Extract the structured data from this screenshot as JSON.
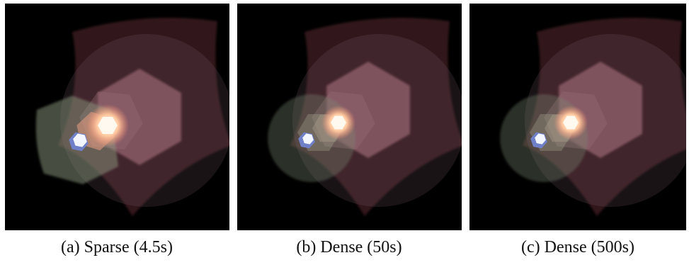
{
  "figure": {
    "panels": [
      {
        "caption": "(a) Sparse (4.5s)"
      },
      {
        "caption": "(b) Dense (50s)"
      },
      {
        "caption": "(c) Dense (500s)"
      }
    ]
  }
}
